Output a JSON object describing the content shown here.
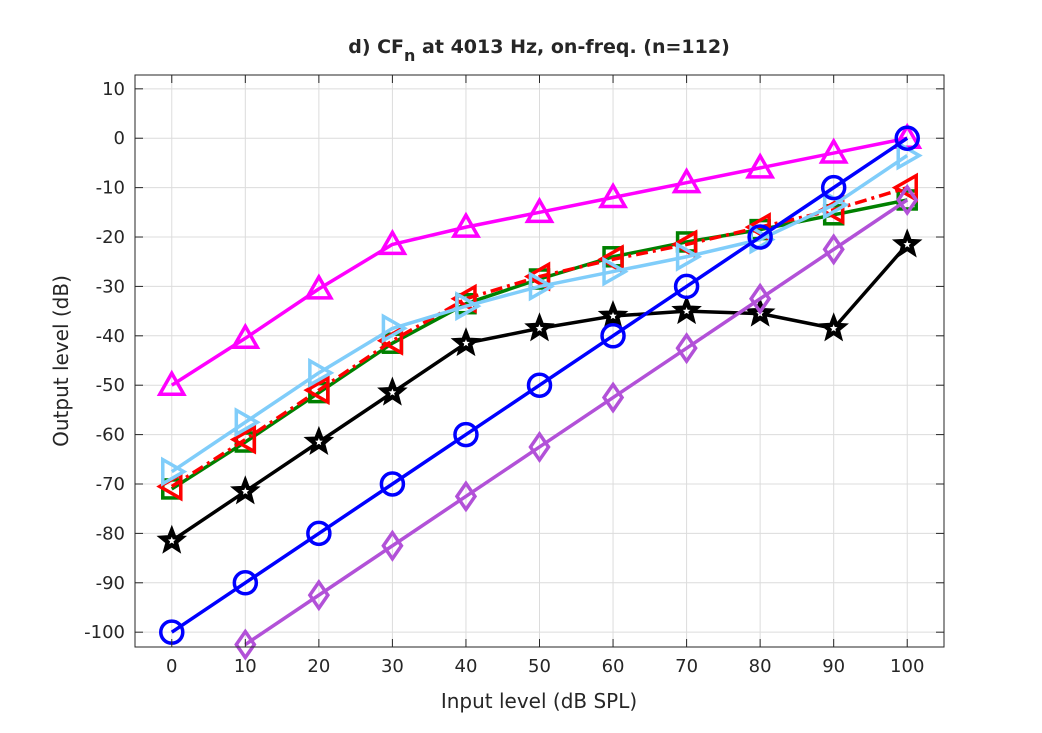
{
  "chart_data": {
    "type": "line",
    "title": "d) CF",
    "title_subscript": "n",
    "title_rest": " at 4013 Hz, on-freq. (n=112)",
    "xlabel": "Input level (dB SPL)",
    "ylabel": "Output level (dB)",
    "xlim": [
      -5,
      105
    ],
    "ylim": [
      -103,
      12.8
    ],
    "grid": true,
    "xticks": [
      0,
      10,
      20,
      30,
      40,
      50,
      60,
      70,
      80,
      90,
      100
    ],
    "yticks": [
      10,
      0,
      -10,
      -20,
      -30,
      -40,
      -50,
      -60,
      -70,
      -80,
      -90,
      -100
    ],
    "x": [
      0,
      10,
      20,
      30,
      40,
      50,
      60,
      70,
      80,
      90,
      100
    ],
    "series": [
      {
        "color": "#ff00ff",
        "marker": "triangle-up",
        "dash": "solid",
        "values": [
          -50,
          -40.5,
          -30.5,
          -21.5,
          -18,
          -15,
          -12,
          -9,
          -6,
          -3,
          0
        ]
      },
      {
        "color": "#008000",
        "marker": "square",
        "dash": "solid",
        "values": [
          -71,
          -61.5,
          -51.5,
          -41.5,
          -33.5,
          -28.5,
          -24,
          -21,
          -18.5,
          -15.5,
          -12.5
        ]
      },
      {
        "color": "#ff0000",
        "marker": "triangle-left",
        "dash": "dashdot",
        "values": [
          -70.5,
          -61,
          -51,
          -41,
          -32.5,
          -28,
          -24.5,
          -21.5,
          -18,
          -14.5,
          -10
        ]
      },
      {
        "color": "#80cdfa",
        "marker": "triangle-right",
        "dash": "solid",
        "values": [
          -67.5,
          -57.5,
          -47.5,
          -38.5,
          -34,
          -30,
          -27,
          -24,
          -20.5,
          -13.5,
          -3.5
        ]
      },
      {
        "color": "#000000",
        "marker": "star",
        "dash": "solid",
        "values": [
          -81.5,
          -71.5,
          -61.5,
          -51.5,
          -41.5,
          -38.5,
          -36,
          -35,
          -35.5,
          -38.5,
          -21.5
        ]
      },
      {
        "color": "#0000ff",
        "marker": "circle",
        "dash": "solid",
        "values": [
          -100,
          -90,
          -80,
          -70,
          -60,
          -50,
          -40,
          -30,
          -20,
          -10,
          0
        ]
      },
      {
        "color": "#b251d8",
        "marker": "diamond",
        "dash": "solid",
        "values": [
          null,
          -102.5,
          -92.5,
          -82.5,
          -72.5,
          -62.5,
          -52.5,
          -42.5,
          -32.5,
          -22.5,
          -12.5
        ]
      }
    ]
  }
}
